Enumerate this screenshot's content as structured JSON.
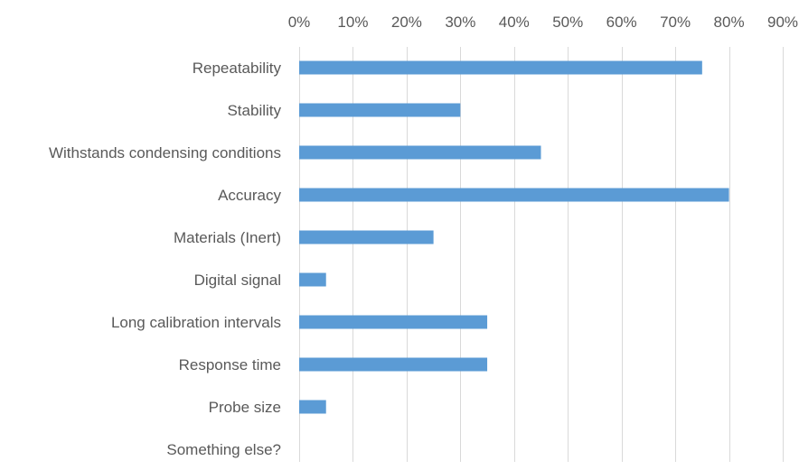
{
  "chart_data": {
    "type": "bar",
    "orientation": "horizontal",
    "title": "",
    "xlabel": "",
    "ylabel": "",
    "xlim": [
      0,
      90
    ],
    "tick_values": [
      0,
      10,
      20,
      30,
      40,
      50,
      60,
      70,
      80,
      90
    ],
    "tick_labels": [
      "0%",
      "10%",
      "20%",
      "30%",
      "40%",
      "50%",
      "60%",
      "70%",
      "80%",
      "90%"
    ],
    "axis_position": "top",
    "grid": true,
    "legend": "none",
    "bar_color": "#5b9bd5",
    "grid_color": "#d9d9d9",
    "categories": [
      "Repeatability",
      "Stability",
      "Withstands condensing conditions",
      "Accuracy",
      "Materials (Inert)",
      "Digital signal",
      "Long calibration intervals",
      "Response time",
      "Probe size",
      "Something else?"
    ],
    "values": [
      75,
      30,
      45,
      80,
      25,
      5,
      35,
      35,
      5,
      0
    ]
  }
}
